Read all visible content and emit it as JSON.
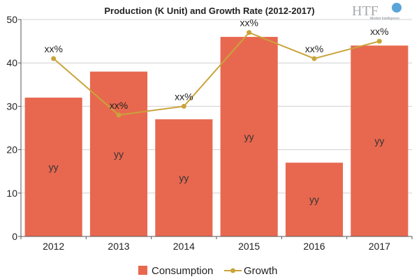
{
  "logo": {
    "text": "HTF",
    "subtitle": "Market Intelligence"
  },
  "chart_data": {
    "type": "bar",
    "title": "Production (K Unit) and Growth Rate (2012-2017)",
    "categories": [
      "2012",
      "2013",
      "2014",
      "2015",
      "2016",
      "2017"
    ],
    "ylim": [
      0,
      50
    ],
    "yticks": [
      0,
      10,
      20,
      30,
      40,
      50
    ],
    "grid": true,
    "legend": "bottom",
    "series": [
      {
        "name": "Consumption",
        "type": "bar",
        "color": "#e8684f",
        "values": [
          32,
          38,
          27,
          46,
          17,
          44
        ],
        "data_labels": [
          "yy",
          "yy",
          "yy",
          "yy",
          "yy",
          "yy"
        ]
      },
      {
        "name": "Growth",
        "type": "line",
        "color": "#c9a43a",
        "values": [
          41,
          28,
          30,
          47,
          41,
          45
        ],
        "data_labels": [
          "xx%",
          "xx%",
          "xx%",
          "xx%",
          "xx%",
          "xx%"
        ]
      }
    ]
  }
}
